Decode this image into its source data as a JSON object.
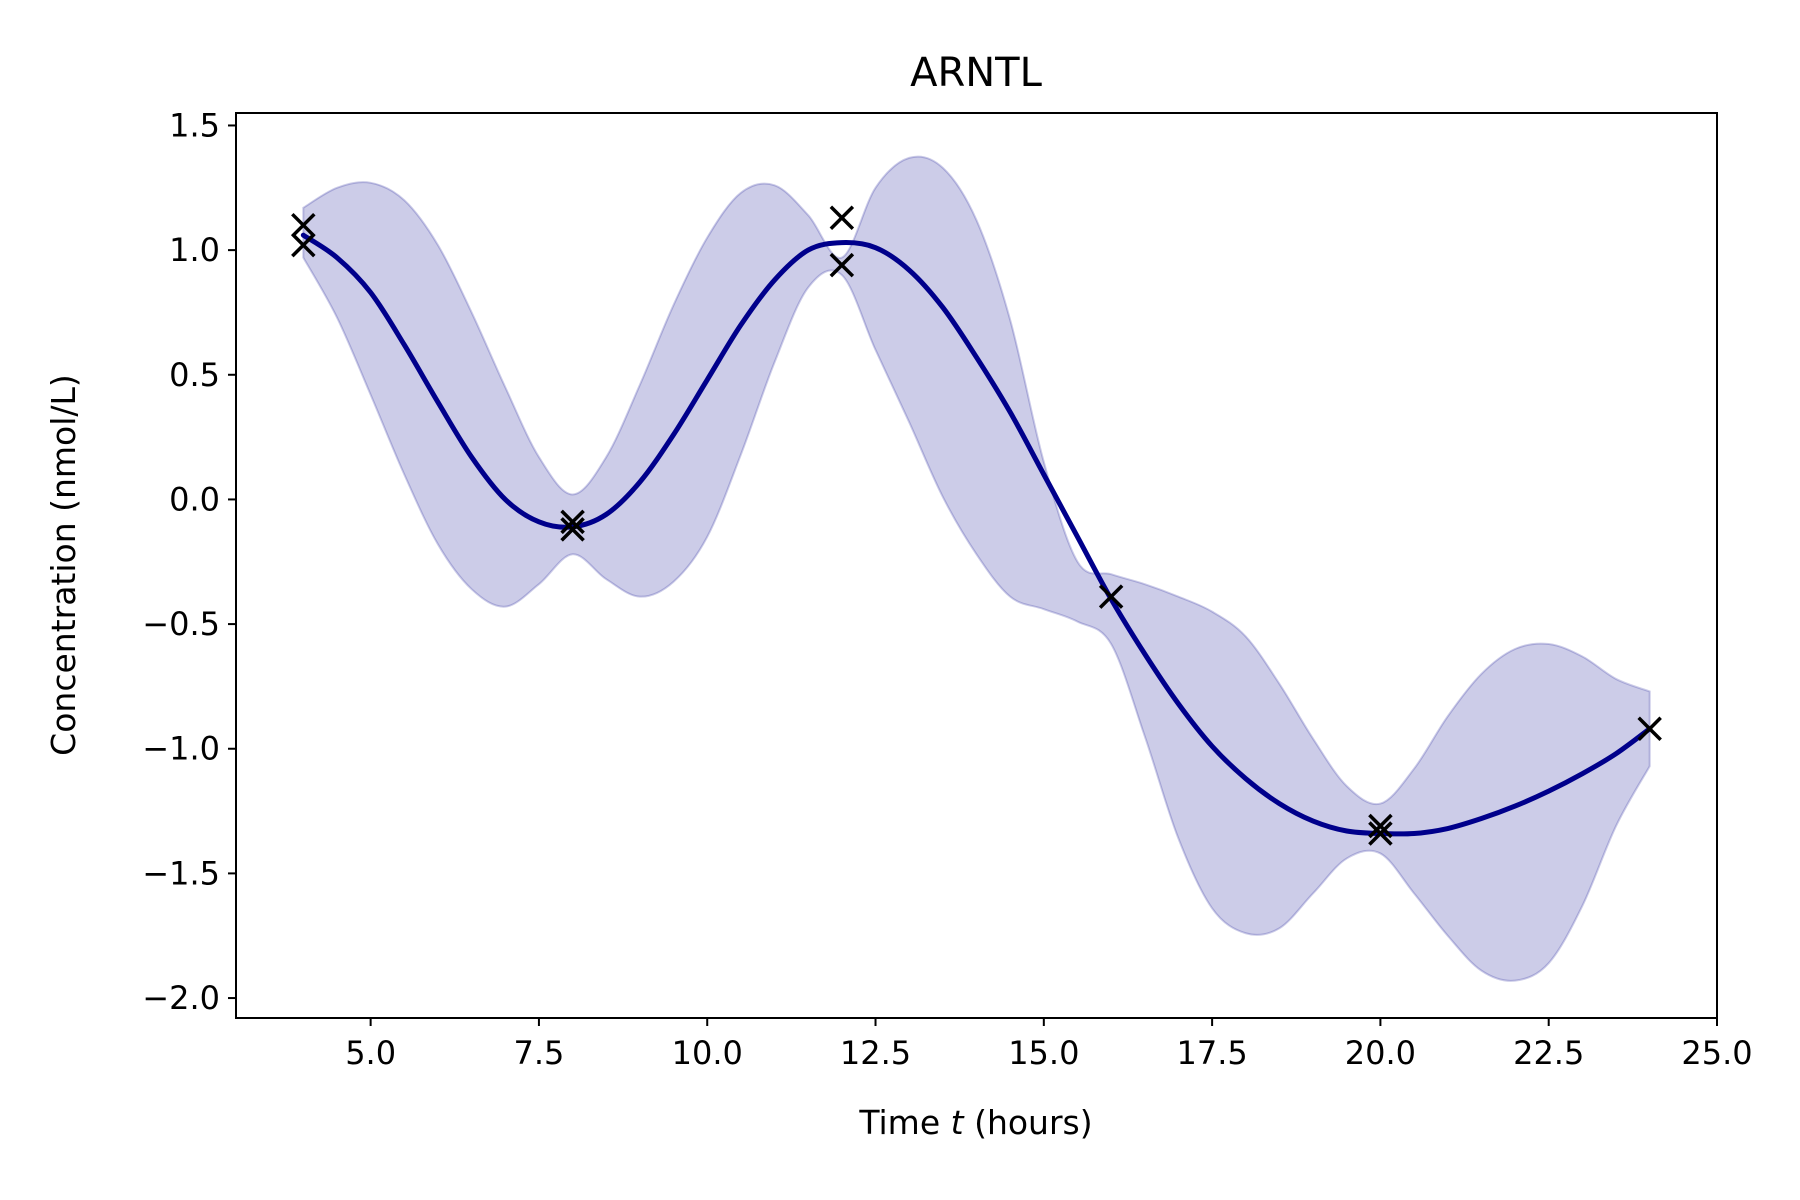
{
  "chart_data": {
    "type": "line",
    "title": "ARNTL",
    "xlabel_prefix": "Time ",
    "xlabel_var": "t",
    "xlabel_suffix": " (hours)",
    "ylabel": "Concentration (nmol/L)",
    "xlim": [
      3.0,
      25.0
    ],
    "ylim": [
      -2.08,
      1.55
    ],
    "xticks": [
      5.0,
      7.5,
      10.0,
      12.5,
      15.0,
      17.5,
      20.0,
      22.5,
      25.0
    ],
    "xtick_labels": [
      "5.0",
      "7.5",
      "10.0",
      "12.5",
      "15.0",
      "17.5",
      "20.0",
      "22.5",
      "25.0"
    ],
    "yticks": [
      1.5,
      1.0,
      0.5,
      0.0,
      -0.5,
      -1.0,
      -1.5,
      -2.0
    ],
    "ytick_labels": [
      "1.5",
      "1.0",
      "0.5",
      "0.0",
      "−0.5",
      "−1.0",
      "−1.5",
      "−2.0"
    ],
    "grid": false,
    "colors": {
      "mean": "#00008b",
      "band": "#00008b",
      "marker": "#000000"
    },
    "mean": {
      "x": [
        4.0,
        4.5,
        5.0,
        5.5,
        6.0,
        6.5,
        7.0,
        7.5,
        8.0,
        8.5,
        9.0,
        9.5,
        10.0,
        10.5,
        11.0,
        11.5,
        12.0,
        12.5,
        13.0,
        13.5,
        14.0,
        14.5,
        15.0,
        15.5,
        16.0,
        16.5,
        17.0,
        17.5,
        18.0,
        18.5,
        19.0,
        19.5,
        20.0,
        20.5,
        21.0,
        21.5,
        22.0,
        22.5,
        23.0,
        23.5,
        24.0
      ],
      "y": [
        1.06,
        0.97,
        0.83,
        0.62,
        0.39,
        0.17,
        0.0,
        -0.09,
        -0.11,
        -0.06,
        0.07,
        0.26,
        0.48,
        0.7,
        0.88,
        1.0,
        1.03,
        1.01,
        0.92,
        0.77,
        0.57,
        0.35,
        0.1,
        -0.15,
        -0.4,
        -0.62,
        -0.82,
        -0.99,
        -1.12,
        -1.22,
        -1.29,
        -1.33,
        -1.34,
        -1.34,
        -1.32,
        -1.28,
        -1.23,
        -1.17,
        -1.1,
        -1.02,
        -0.92
      ]
    },
    "band": {
      "x": [
        4.0,
        4.5,
        5.0,
        5.5,
        6.0,
        6.5,
        7.0,
        7.5,
        8.0,
        8.5,
        9.0,
        9.5,
        10.0,
        10.5,
        11.0,
        11.5,
        12.0,
        12.5,
        13.0,
        13.5,
        14.0,
        14.5,
        15.0,
        15.5,
        16.0,
        16.5,
        17.0,
        17.5,
        18.0,
        18.5,
        19.0,
        19.5,
        20.0,
        20.5,
        21.0,
        21.5,
        22.0,
        22.5,
        23.0,
        23.5,
        24.0
      ],
      "upper": [
        1.17,
        1.25,
        1.27,
        1.2,
        1.02,
        0.75,
        0.45,
        0.17,
        0.02,
        0.17,
        0.46,
        0.78,
        1.05,
        1.23,
        1.26,
        1.14,
        0.97,
        1.25,
        1.37,
        1.33,
        1.12,
        0.72,
        0.15,
        -0.25,
        -0.3,
        -0.34,
        -0.39,
        -0.45,
        -0.55,
        -0.74,
        -0.96,
        -1.15,
        -1.22,
        -1.08,
        -0.87,
        -0.7,
        -0.6,
        -0.58,
        -0.63,
        -0.72,
        -0.77
      ],
      "lower": [
        0.97,
        0.73,
        0.42,
        0.1,
        -0.18,
        -0.36,
        -0.43,
        -0.34,
        -0.22,
        -0.32,
        -0.39,
        -0.33,
        -0.15,
        0.18,
        0.55,
        0.85,
        0.9,
        0.6,
        0.31,
        0.01,
        -0.22,
        -0.39,
        -0.44,
        -0.49,
        -0.58,
        -0.95,
        -1.36,
        -1.64,
        -1.74,
        -1.72,
        -1.58,
        -1.44,
        -1.42,
        -1.58,
        -1.75,
        -1.89,
        -1.93,
        -1.86,
        -1.63,
        -1.31,
        -1.07
      ]
    },
    "observations": {
      "x": [
        4,
        4,
        8,
        8,
        12,
        12,
        16,
        20,
        20,
        24
      ],
      "y": [
        1.1,
        1.02,
        -0.09,
        -0.12,
        1.13,
        0.94,
        -0.39,
        -1.31,
        -1.34,
        -0.92
      ]
    }
  }
}
